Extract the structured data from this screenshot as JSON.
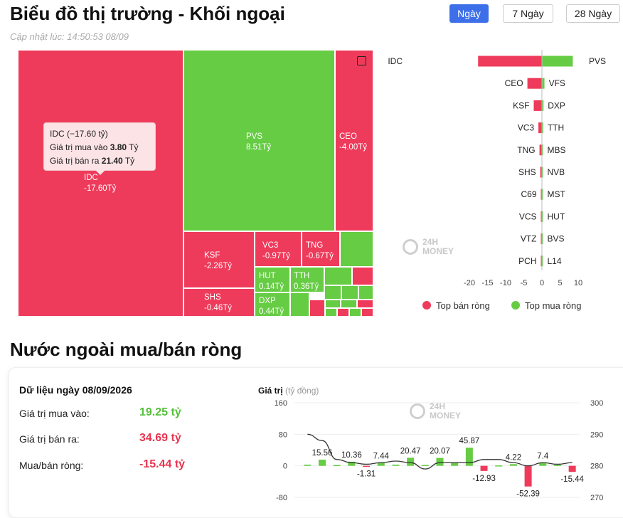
{
  "header": {
    "title": "Biểu đồ thị trường - Khối ngoại",
    "updated": "Cập nhật lúc: 14:50:53 08/09",
    "tabs": [
      {
        "label": "Ngày",
        "active": true
      },
      {
        "label": "7 Ngày",
        "active": false
      },
      {
        "label": "28 Ngày",
        "active": false
      }
    ]
  },
  "treemap": {
    "cells": [
      {
        "sym": "IDC",
        "val": "-17.60Tỷ",
        "color": "red"
      },
      {
        "sym": "PVS",
        "val": "8.51Tỷ",
        "color": "green"
      },
      {
        "sym": "CEO",
        "val": "-4.00Tỷ",
        "color": "red"
      },
      {
        "sym": "KSF",
        "val": "-2.26Tỷ",
        "color": "red"
      },
      {
        "sym": "VC3",
        "val": "-0.97Tỷ",
        "color": "red"
      },
      {
        "sym": "TNG",
        "val": "-0.67Tỷ",
        "color": "red"
      },
      {
        "sym": "SHS",
        "val": "-0.46Tỷ",
        "color": "red"
      },
      {
        "sym": "HUT",
        "val": "0.14Tỷ",
        "color": "green"
      },
      {
        "sym": "TTH",
        "val": "0.36Tỷ",
        "color": "green"
      },
      {
        "sym": "DXP",
        "val": "0.44Tỷ",
        "color": "green"
      }
    ],
    "tooltip": {
      "title": "IDC (−17.60 tỷ)",
      "buy_prefix": "Giá trị mua vào ",
      "buy_value": "3.80",
      "buy_suffix": " Tỷ",
      "sell_prefix": "Giá trị bán ra ",
      "sell_value": "21.40",
      "sell_suffix": " Tỷ"
    }
  },
  "bar_chart": {
    "type": "bar",
    "sell": [
      {
        "sym": "IDC",
        "value": -17.6
      },
      {
        "sym": "CEO",
        "value": -4.0
      },
      {
        "sym": "KSF",
        "value": -2.26
      },
      {
        "sym": "VC3",
        "value": -0.97
      },
      {
        "sym": "TNG",
        "value": -0.67
      },
      {
        "sym": "SHS",
        "value": -0.46
      },
      {
        "sym": "C69",
        "value": -0.2
      },
      {
        "sym": "VCS",
        "value": -0.15
      },
      {
        "sym": "VTZ",
        "value": -0.12
      },
      {
        "sym": "PCH",
        "value": -0.08
      }
    ],
    "buy": [
      {
        "sym": "PVS",
        "value": 8.51
      },
      {
        "sym": "VFS",
        "value": 0.7
      },
      {
        "sym": "DXP",
        "value": 0.44
      },
      {
        "sym": "TTH",
        "value": 0.36
      },
      {
        "sym": "MBS",
        "value": 0.3
      },
      {
        "sym": "NVB",
        "value": 0.2
      },
      {
        "sym": "MST",
        "value": 0.18
      },
      {
        "sym": "HUT",
        "value": 0.14
      },
      {
        "sym": "BVS",
        "value": 0.1
      },
      {
        "sym": "L14",
        "value": 0.06
      }
    ],
    "xlim": [
      -20,
      10
    ],
    "xticks": [
      -20,
      -15,
      -10,
      -5,
      0,
      5,
      10
    ],
    "legend": {
      "sell_label": "Top bán ròng",
      "buy_label": "Top mua ròng",
      "sell_color": "#ee3b5b",
      "buy_color": "#66cc44"
    }
  },
  "section2": {
    "title": "Nước ngoài mua/bán ròng",
    "summary": {
      "date_label": "Dữ liệu ngày 08/09/2026",
      "buy_label": "Giá trị mua vào:",
      "buy_value": "19.25 tỷ",
      "sell_label": "Giá trị bán ra:",
      "sell_value": "34.69 tỷ",
      "net_label": "Mua/bán ròng:",
      "net_value": "-15.44 tỷ"
    }
  },
  "chart_data": {
    "type": "bar",
    "ylabel": "Giá trị",
    "ylabel_unit": "(tỷ đồng)",
    "y_ticks": [
      160,
      80,
      0,
      -80
    ],
    "ylim": [
      -80,
      160
    ],
    "y2_ticks": [
      300,
      290,
      280,
      270
    ],
    "y2lim": [
      270,
      300
    ],
    "values": [
      3,
      15.56,
      2,
      10.36,
      -1.31,
      7.44,
      3,
      20.47,
      2,
      20.07,
      8,
      45.87,
      -12.93,
      1,
      4.22,
      -52.39,
      7.4,
      2,
      -15.44
    ],
    "labels": [
      "",
      "15.56",
      "",
      "10.36",
      "-1.31",
      "7.44",
      "",
      "20.47",
      "",
      "20.07",
      "",
      "45.87",
      "-12.93",
      "",
      "4.22",
      "-52.39",
      "7.4",
      "",
      "-15.44"
    ],
    "line_values": [
      290,
      288,
      282,
      281,
      280.5,
      281,
      281.5,
      281,
      279,
      281,
      281,
      281,
      282,
      282,
      281,
      280,
      281,
      280.5,
      281
    ],
    "pos_color": "#66cc44",
    "neg_color": "#ee3b5b"
  },
  "watermark": {
    "line1": "24H",
    "line2": "MONEY"
  }
}
